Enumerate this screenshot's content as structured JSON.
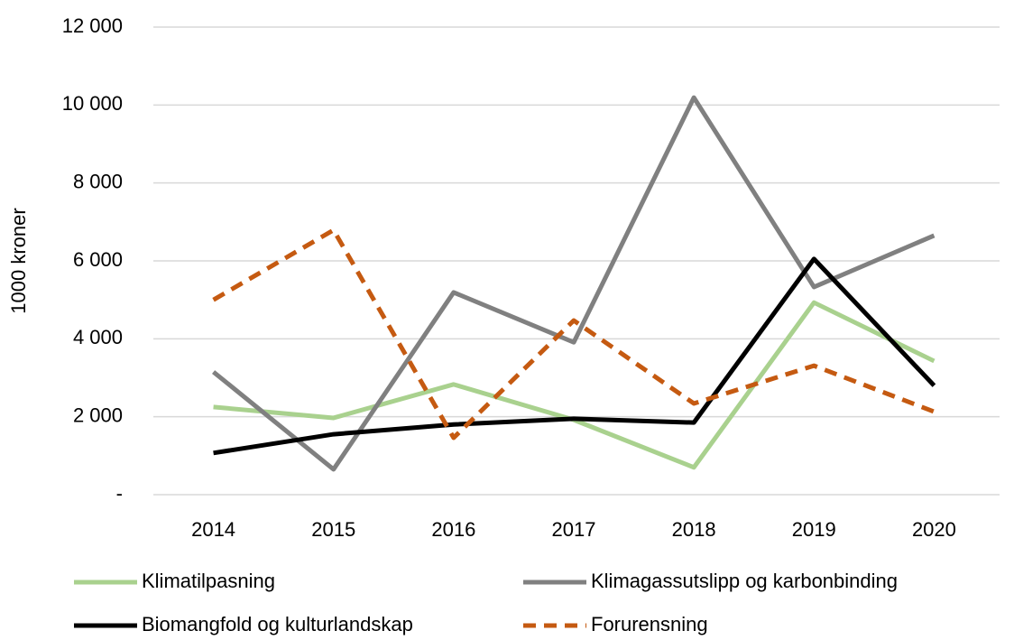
{
  "chart_data": {
    "type": "line",
    "y_label": "1000 kroner",
    "categories": [
      "2014",
      "2015",
      "2016",
      "2017",
      "2018",
      "2019",
      "2020"
    ],
    "series": [
      {
        "name": "Klimatilpasning",
        "color": "#a9d18e",
        "style": "solid",
        "values": [
          2250,
          1970,
          2830,
          1920,
          700,
          4930,
          3430
        ]
      },
      {
        "name": "Klimagassutslipp og karbonbinding",
        "color": "#808080",
        "style": "solid",
        "values": [
          3150,
          650,
          5190,
          3910,
          10190,
          5330,
          6650
        ]
      },
      {
        "name": "Biomangfold og kulturlandskap",
        "color": "#000000",
        "style": "solid",
        "values": [
          1070,
          1550,
          1800,
          1950,
          1850,
          6050,
          2800
        ]
      },
      {
        "name": "Forurensning",
        "color": "#c55a11",
        "style": "dashed",
        "values": [
          5000,
          6790,
          1460,
          4470,
          2340,
          3310,
          2130
        ]
      }
    ],
    "ylim": [
      0,
      12000
    ],
    "yticks": [
      {
        "value": 0,
        "label": "-"
      },
      {
        "value": 2000,
        "label": "2 000"
      },
      {
        "value": 4000,
        "label": "4 000"
      },
      {
        "value": 6000,
        "label": "6 000"
      },
      {
        "value": 8000,
        "label": "8 000"
      },
      {
        "value": 10000,
        "label": "10 000"
      },
      {
        "value": 12000,
        "label": "12 000"
      }
    ],
    "grid": true
  }
}
